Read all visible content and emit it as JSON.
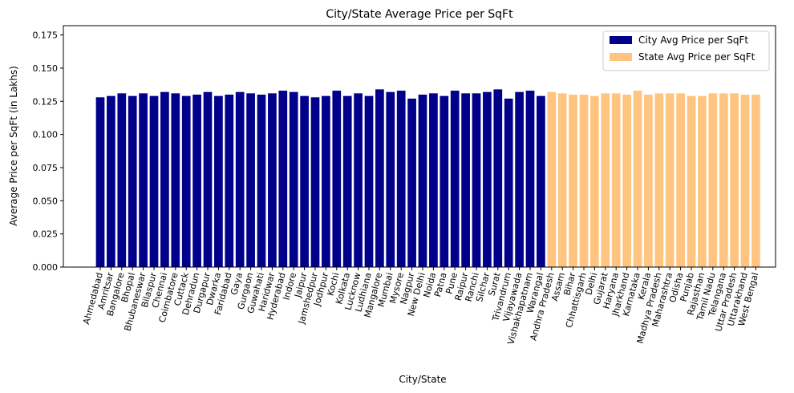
{
  "chart_data": {
    "type": "bar",
    "title": "City/State Average Price per SqFt",
    "xlabel": "City/State",
    "ylabel": "Average Price per SqFt (in Lakhs)",
    "ylim": [
      0,
      0.182
    ],
    "yticks": [
      "0.000",
      "0.025",
      "0.050",
      "0.075",
      "0.100",
      "0.125",
      "0.150",
      "0.175"
    ],
    "grid": false,
    "legend_position": "top-right",
    "series": [
      {
        "name": "City Avg Price per SqFt",
        "color": "#00008b",
        "categories": [
          "Ahmedabad",
          "Amritsar",
          "Bangalore",
          "Bhopal",
          "Bhubaneswar",
          "Bilaspur",
          "Chennai",
          "Coimbatore",
          "Cuttack",
          "Dehradun",
          "Durgapur",
          "Dwarka",
          "Faridabad",
          "Gaya",
          "Gurgaon",
          "Guwahati",
          "Haridwar",
          "Hyderabad",
          "Indore",
          "Jaipur",
          "Jamshedpur",
          "Jodhpur",
          "Kochi",
          "Kolkata",
          "Lucknow",
          "Ludhiana",
          "Mangalore",
          "Mumbai",
          "Mysore",
          "Nagpur",
          "New Delhi",
          "Noida",
          "Patna",
          "Pune",
          "Raipur",
          "Ranchi",
          "Silchar",
          "Surat",
          "Trivandrum",
          "Vijayawada",
          "Vishakhapatnam",
          "Warangal"
        ],
        "values": [
          0.128,
          0.129,
          0.131,
          0.129,
          0.131,
          0.129,
          0.132,
          0.131,
          0.129,
          0.13,
          0.132,
          0.129,
          0.13,
          0.132,
          0.131,
          0.13,
          0.131,
          0.133,
          0.132,
          0.129,
          0.128,
          0.129,
          0.133,
          0.129,
          0.131,
          0.129,
          0.134,
          0.132,
          0.133,
          0.127,
          0.13,
          0.131,
          0.129,
          0.133,
          0.131,
          0.131,
          0.132,
          0.134,
          0.127,
          0.132,
          0.133,
          0.129
        ]
      },
      {
        "name": "State Avg Price per SqFt",
        "color": "#ffc580",
        "categories": [
          "Andhra Pradesh",
          "Assam",
          "Bihar",
          "Chhattisgarh",
          "Delhi",
          "Gujarat",
          "Haryana",
          "Jharkhand",
          "Karnataka",
          "Kerala",
          "Madhya Pradesh",
          "Maharashtra",
          "Odisha",
          "Punjab",
          "Rajasthan",
          "Tamil Nadu",
          "Telangana",
          "Uttar Pradesh",
          "Uttarakhand",
          "West Bengal"
        ],
        "values": [
          0.132,
          0.131,
          0.13,
          0.13,
          0.129,
          0.131,
          0.131,
          0.13,
          0.133,
          0.13,
          0.131,
          0.131,
          0.131,
          0.129,
          0.129,
          0.131,
          0.131,
          0.131,
          0.13,
          0.13
        ]
      }
    ]
  }
}
